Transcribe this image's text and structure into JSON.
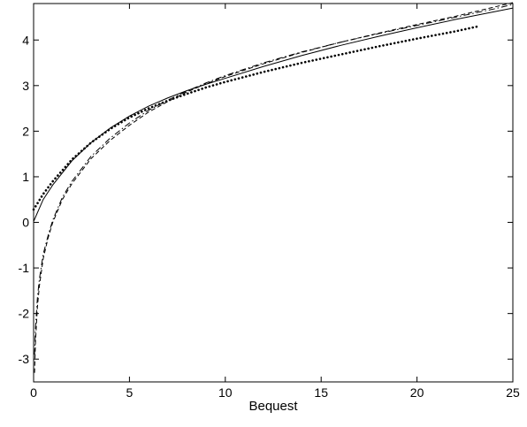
{
  "chart_data": {
    "type": "line",
    "title": "",
    "xlabel": "Bequest",
    "ylabel": "",
    "xlim": [
      0,
      25
    ],
    "ylim": [
      -3.5,
      4.8
    ],
    "xticks": [
      0,
      5,
      10,
      15,
      20,
      25
    ],
    "yticks": [
      -3,
      -2,
      -1,
      0,
      1,
      2,
      3,
      4
    ],
    "grid": false,
    "legend": "none",
    "colors": {
      "line": "#000000",
      "axes": "#000000",
      "background": "#ffffff"
    },
    "series": [
      {
        "style": "solid",
        "x": [
          0,
          0.5,
          1,
          2,
          3,
          4,
          5,
          6,
          7,
          8,
          9,
          10,
          12,
          14,
          16,
          18,
          20,
          22,
          25
        ],
        "y": [
          0.02,
          0.5,
          0.82,
          1.35,
          1.75,
          2.07,
          2.33,
          2.55,
          2.73,
          2.89,
          3.03,
          3.16,
          3.42,
          3.66,
          3.88,
          4.08,
          4.27,
          4.45,
          4.7
        ]
      },
      {
        "style": "dashed",
        "x": [
          0.05,
          0.1,
          0.2,
          0.3,
          0.5,
          0.75,
          1,
          1.5,
          2,
          3,
          4,
          5,
          6,
          7,
          8,
          9,
          10,
          12,
          14,
          16,
          18,
          20,
          22,
          24,
          25
        ],
        "y": [
          -3.3,
          -2.6,
          -1.85,
          -1.4,
          -0.8,
          -0.35,
          0.0,
          0.5,
          0.85,
          1.4,
          1.8,
          2.13,
          2.42,
          2.65,
          2.86,
          3.04,
          3.2,
          3.48,
          3.73,
          3.95,
          4.15,
          4.34,
          4.52,
          4.72,
          4.82
        ]
      },
      {
        "style": "dashdot",
        "x": [
          0.05,
          0.1,
          0.2,
          0.3,
          0.5,
          0.75,
          1,
          1.5,
          2,
          3,
          4,
          5,
          6,
          7,
          8,
          9,
          10,
          12,
          14,
          16,
          18,
          20,
          22,
          24,
          25
        ],
        "y": [
          -2.9,
          -2.3,
          -1.65,
          -1.25,
          -0.7,
          -0.3,
          0.05,
          0.55,
          0.9,
          1.45,
          1.85,
          2.18,
          2.46,
          2.68,
          2.88,
          3.06,
          3.22,
          3.5,
          3.74,
          3.95,
          4.14,
          4.32,
          4.5,
          4.68,
          4.78
        ]
      },
      {
        "style": "dotted",
        "x": [
          0,
          0.5,
          1,
          2,
          3,
          4,
          5,
          6,
          7,
          8,
          9,
          10,
          12,
          14,
          16,
          18,
          20,
          22,
          23.2
        ],
        "y": [
          0.28,
          0.62,
          0.9,
          1.38,
          1.75,
          2.05,
          2.3,
          2.5,
          2.67,
          2.82,
          2.96,
          3.08,
          3.3,
          3.5,
          3.68,
          3.86,
          4.03,
          4.19,
          4.3
        ]
      }
    ]
  }
}
